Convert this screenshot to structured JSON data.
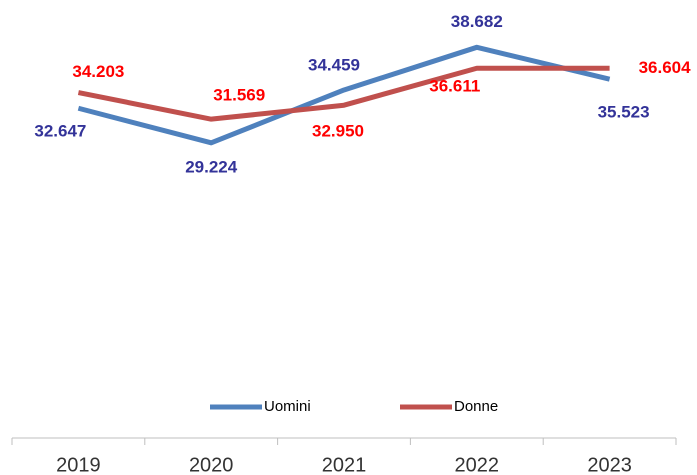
{
  "chart_data": {
    "type": "line",
    "categories": [
      "2019",
      "2020",
      "2021",
      "2022",
      "2023"
    ],
    "series": [
      {
        "name": "Uomini",
        "color": "#4f81bd",
        "label_color": "#333399",
        "values": [
          32647,
          29224,
          34459,
          38682,
          35523
        ],
        "value_labels": [
          "32.647",
          "29.224",
          "34.459",
          "38.682",
          "35.523"
        ]
      },
      {
        "name": "Donne",
        "color": "#c0504d",
        "label_color": "#ff0000",
        "values": [
          34203,
          31569,
          32950,
          36611,
          36604
        ],
        "value_labels": [
          "34.203",
          "31.569",
          "32.950",
          "36.611",
          "36.604"
        ]
      }
    ],
    "ylim": [
      0,
      40000
    ],
    "legend": "bottom"
  }
}
